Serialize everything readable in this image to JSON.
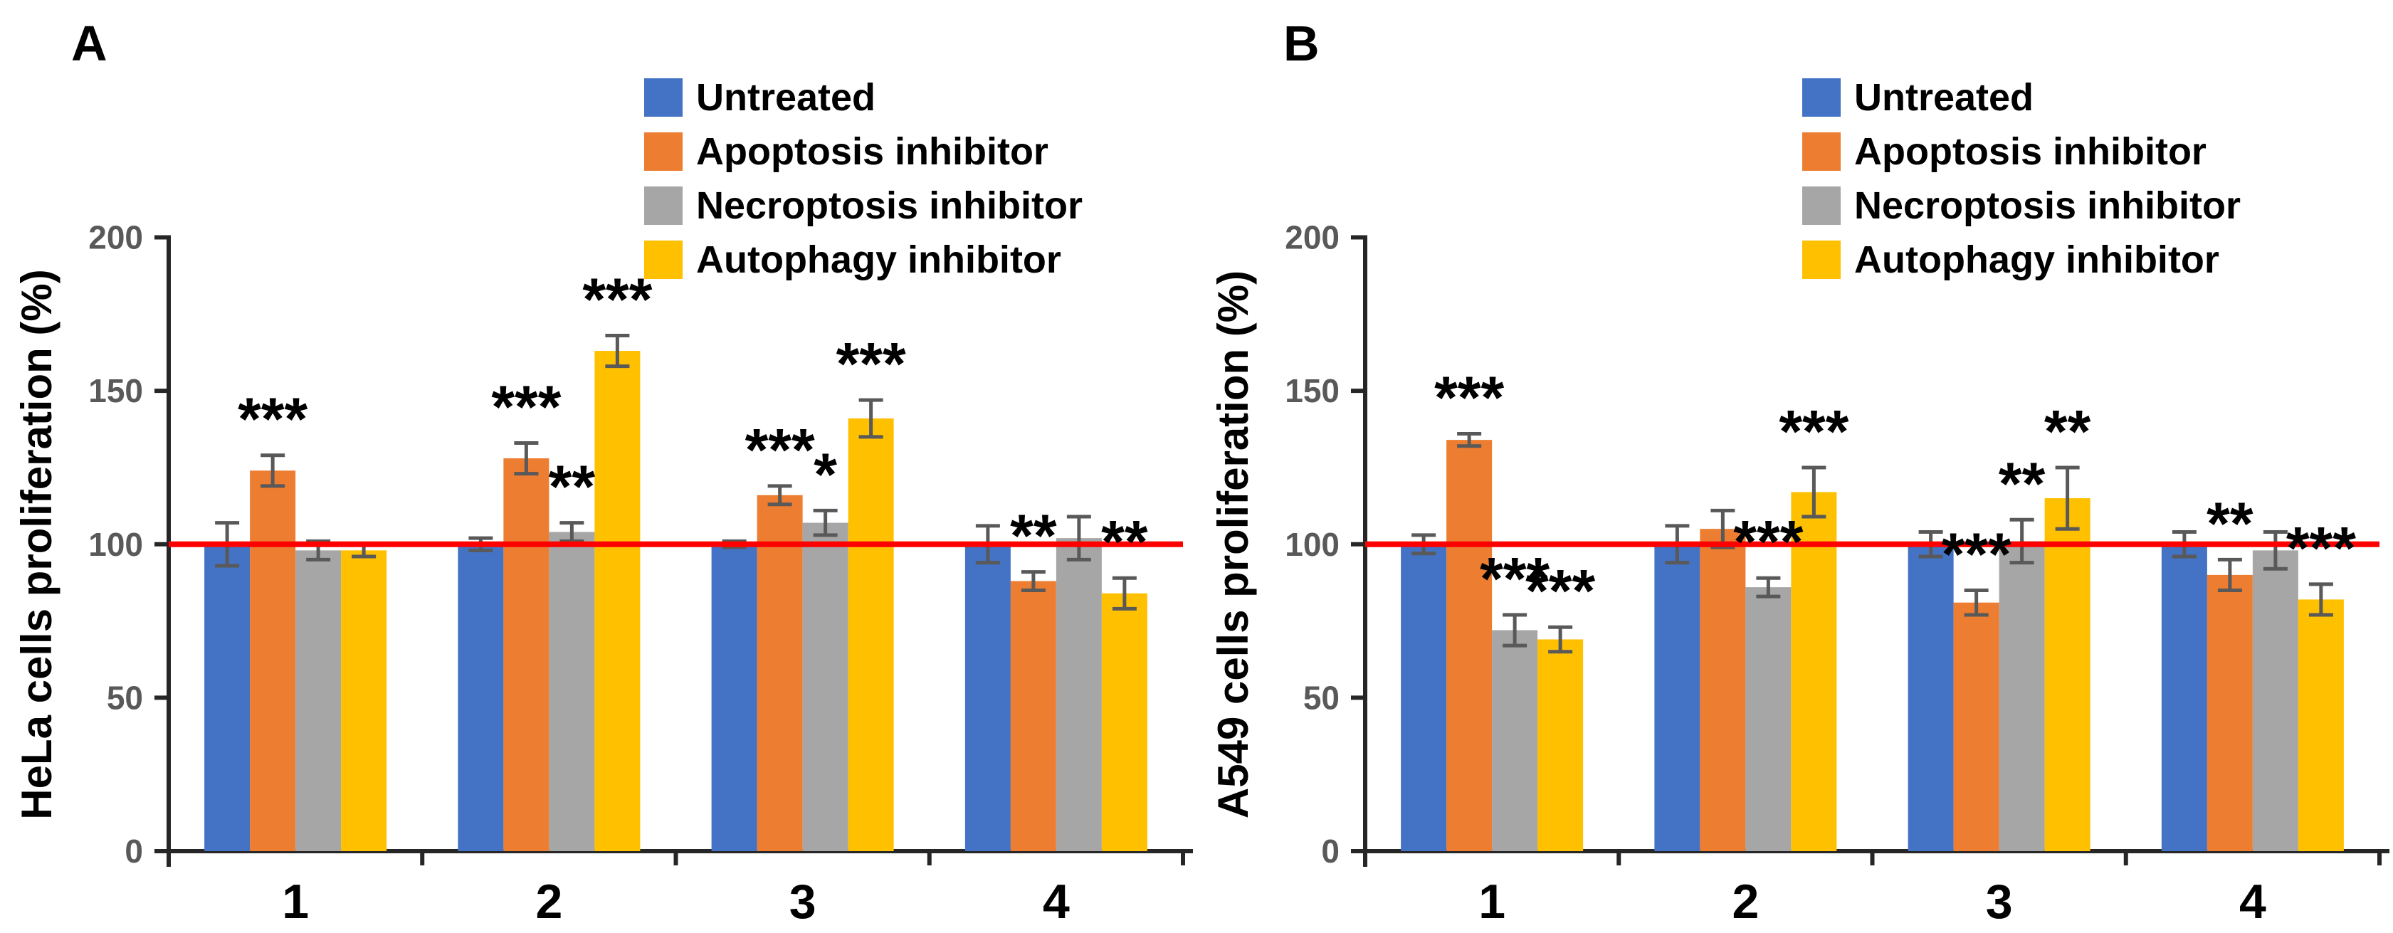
{
  "figure_type": "two-panel grouped bar chart with error bars and significance stars",
  "colors": {
    "untreated": "#4472C4",
    "apoptosis_inhibitor": "#ED7D31",
    "necroptosis_inhibitor": "#A6A6A6",
    "autophagy_inhibitor": "#FFC000",
    "reference_line": "#FF0000",
    "axis": "#262626",
    "tick_label": "#595959",
    "error_bar": "#595959",
    "text": "#000000"
  },
  "legend": {
    "items": [
      {
        "label": "Untreated",
        "color": "#4472C4"
      },
      {
        "label": "Apoptosis inhibitor",
        "color": "#ED7D31"
      },
      {
        "label": "Necroptosis inhibitor",
        "color": "#A6A6A6"
      },
      {
        "label": "Autophagy inhibitor",
        "color": "#FFC000"
      }
    ]
  },
  "chart_data": [
    {
      "type": "bar",
      "panel_label": "A",
      "title": "",
      "ylabel": "HeLa cells proliferation (%)",
      "xlabel": "",
      "ylim": [
        0,
        200
      ],
      "yticks": [
        0,
        50,
        100,
        150,
        200
      ],
      "reference_line_y": 100,
      "grid": false,
      "legend_position": "top-right",
      "categories": [
        "1",
        "2",
        "3",
        "4"
      ],
      "series": [
        {
          "name": "Untreated",
          "color": "#4472C4",
          "values": [
            100,
            100,
            100,
            100
          ],
          "errors": [
            7,
            2,
            1,
            6
          ],
          "sig": [
            null,
            null,
            null,
            null
          ]
        },
        {
          "name": "Apoptosis inhibitor",
          "color": "#ED7D31",
          "values": [
            124,
            128,
            116,
            88
          ],
          "errors": [
            5,
            5,
            3,
            3
          ],
          "sig": [
            "***",
            "***",
            "***",
            "**"
          ]
        },
        {
          "name": "Necroptosis inhibitor",
          "color": "#A6A6A6",
          "values": [
            98,
            104,
            107,
            102
          ],
          "errors": [
            3,
            3,
            4,
            7
          ],
          "sig": [
            null,
            "**",
            "*",
            null
          ]
        },
        {
          "name": "Autophagy inhibitor",
          "color": "#FFC000",
          "values": [
            98,
            163,
            141,
            84
          ],
          "errors": [
            2,
            5,
            6,
            5
          ],
          "sig": [
            null,
            "***",
            "***",
            "**"
          ]
        }
      ]
    },
    {
      "type": "bar",
      "panel_label": "B",
      "title": "",
      "ylabel": "A549 cells proliferation (%)",
      "xlabel": "",
      "ylim": [
        0,
        200
      ],
      "yticks": [
        0,
        50,
        100,
        150,
        200
      ],
      "reference_line_y": 100,
      "grid": false,
      "legend_position": "top-right",
      "categories": [
        "1",
        "2",
        "3",
        "4"
      ],
      "series": [
        {
          "name": "Untreated",
          "color": "#4472C4",
          "values": [
            100,
            100,
            100,
            100
          ],
          "errors": [
            3,
            6,
            4,
            4
          ],
          "sig": [
            null,
            null,
            null,
            null
          ]
        },
        {
          "name": "Apoptosis inhibitor",
          "color": "#ED7D31",
          "values": [
            134,
            105,
            81,
            90
          ],
          "errors": [
            2,
            6,
            4,
            5
          ],
          "sig": [
            "***",
            null,
            "***",
            "**"
          ]
        },
        {
          "name": "Necroptosis inhibitor",
          "color": "#A6A6A6",
          "values": [
            72,
            86,
            101,
            98
          ],
          "errors": [
            5,
            3,
            7,
            6
          ],
          "sig": [
            "***",
            "***",
            "**",
            null
          ]
        },
        {
          "name": "Autophagy inhibitor",
          "color": "#FFC000",
          "values": [
            69,
            117,
            115,
            82
          ],
          "errors": [
            4,
            8,
            10,
            5
          ],
          "sig": [
            "***",
            "***",
            "**",
            "***"
          ]
        }
      ]
    }
  ]
}
